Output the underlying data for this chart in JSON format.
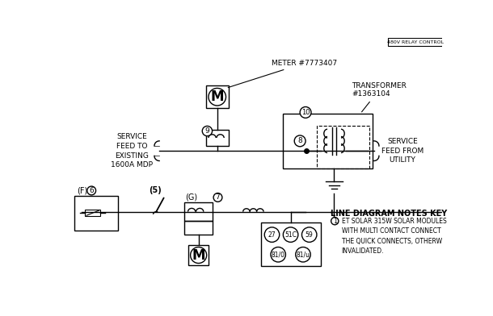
{
  "bg_color": "#ffffff",
  "line_color": "#000000",
  "meter_label": "METER #7773407",
  "transformer_label": "TRANSFORMER\n#1363104",
  "service_feed_left": "SERVICE\nFEED TO\nEXISTING\n1600A MDP",
  "service_feed_right": "SERVICE\nFEED FROM\nUTILITY",
  "notes_title": "LINE DIAGRAM NOTES KEY",
  "notes_line1": "ET SOLAR 315W SOLAR MODULES",
  "notes_line2": "WITH MULTI CONTACT CONNECT",
  "notes_line3": "THE QUICK CONNECTS, OTHERW",
  "notes_line4": "INVALIDATED.",
  "title_box_text": "480V RELAY CONTROL"
}
